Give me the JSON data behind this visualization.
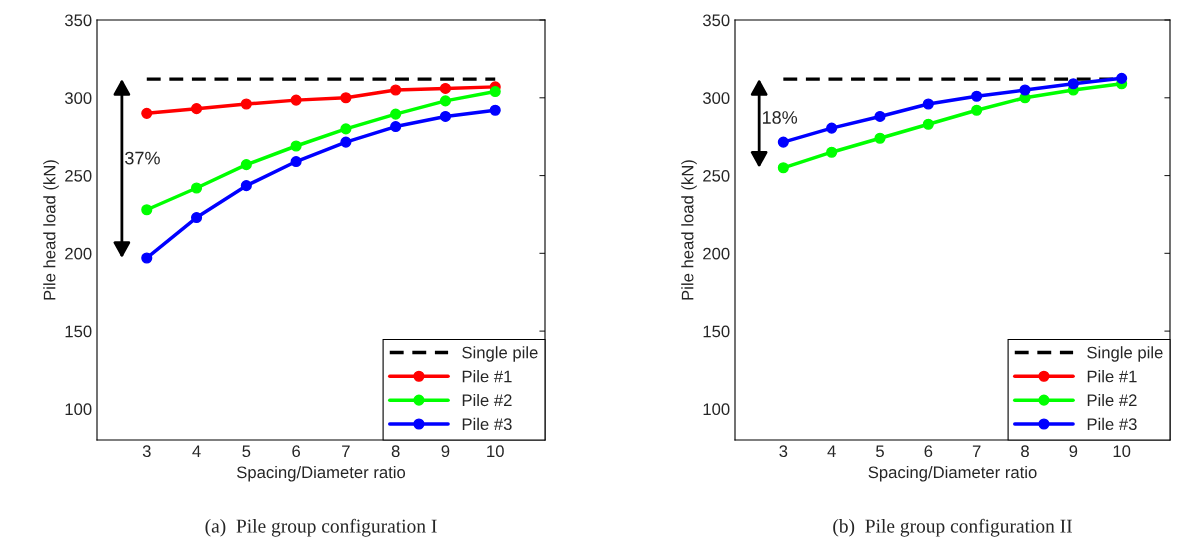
{
  "chart_data": [
    {
      "type": "line",
      "title": "(a)  Pile group configuration I",
      "xlabel": "Spacing/Diameter ratio",
      "ylabel": "Pile head load (kN)",
      "x": [
        3,
        4,
        5,
        6,
        7,
        8,
        9,
        10
      ],
      "xlim": [
        2,
        11
      ],
      "xticks": [
        3,
        4,
        5,
        6,
        7,
        8,
        9,
        10
      ],
      "ylim": [
        80,
        350
      ],
      "yticks": [
        100,
        150,
        200,
        250,
        300,
        350
      ],
      "grid": false,
      "legend": "bottom right",
      "marker": "circle",
      "annotations": [
        "37%"
      ],
      "series": [
        {
          "name": "Single pile",
          "color": "#000000",
          "values": [
            312,
            312,
            312,
            312,
            312,
            312,
            312,
            312
          ],
          "line_style": "dashed",
          "marker": "none"
        },
        {
          "name": "Pile #1",
          "color": "#ff0000",
          "values": [
            290,
            293,
            296,
            298.5,
            300,
            305,
            306,
            307
          ]
        },
        {
          "name": "Pile #2",
          "color": "#00ff00",
          "values": [
            228,
            242,
            257,
            269,
            280,
            289.5,
            298,
            304
          ]
        },
        {
          "name": "Pile #3",
          "color": "#0000ff",
          "values": [
            197,
            223,
            243.5,
            259,
            271.5,
            281.5,
            288,
            292
          ]
        }
      ]
    },
    {
      "type": "line",
      "title": "(b)  Pile group configuration II",
      "xlabel": "Spacing/Diameter ratio",
      "ylabel": "Pile head load (kN)",
      "x": [
        3,
        4,
        5,
        6,
        7,
        8,
        9,
        10
      ],
      "xlim": [
        2,
        11
      ],
      "xticks": [
        3,
        4,
        5,
        6,
        7,
        8,
        9,
        10
      ],
      "ylim": [
        80,
        350
      ],
      "yticks": [
        100,
        150,
        200,
        250,
        300,
        350
      ],
      "grid": false,
      "legend": "bottom right",
      "marker": "circle",
      "annotations": [
        "18%"
      ],
      "series": [
        {
          "name": "Single pile",
          "color": "#000000",
          "values": [
            312,
            312,
            312,
            312,
            312,
            312,
            312,
            312
          ],
          "line_style": "dashed",
          "marker": "none"
        },
        {
          "name": "Pile #1",
          "color": "#ff0000",
          "values": [
            null,
            null,
            null,
            null,
            null,
            null,
            null,
            null
          ]
        },
        {
          "name": "Pile #2",
          "color": "#00ff00",
          "values": [
            255,
            265,
            274,
            283,
            292,
            300,
            305,
            309
          ]
        },
        {
          "name": "Pile #3",
          "color": "#0000ff",
          "values": [
            271.5,
            280.5,
            288,
            296,
            301,
            305,
            309,
            312.5
          ]
        }
      ]
    }
  ]
}
